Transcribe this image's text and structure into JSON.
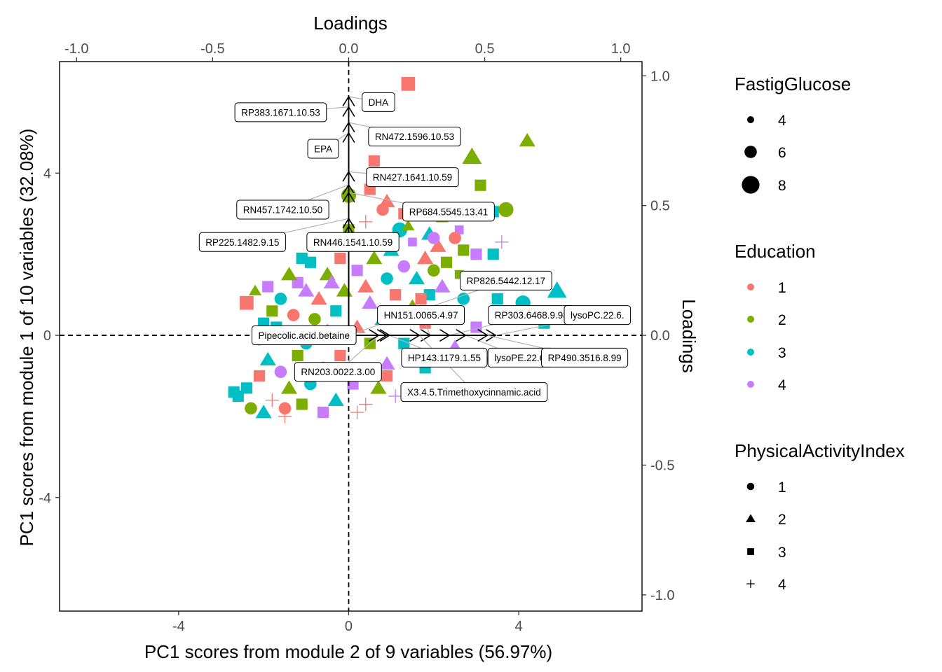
{
  "chart_data": {
    "type": "scatter",
    "subtype": "biplot",
    "xlabel": "PC1 scores from module 2 of 9 variables (56.97%)",
    "ylabel": "PC1 scores from module 1 of 10 variables (32.08%)",
    "top_axis_label": "Loadings",
    "right_axis_label": "Loadings",
    "xlim": [
      -6.8,
      6.9
    ],
    "ylim": [
      -6.8,
      6.75
    ],
    "xticks": [
      -4,
      0,
      4
    ],
    "yticks": [
      -4,
      0,
      4
    ],
    "loading_scale": 6.4,
    "top_ticks": [
      {
        "value": -1.0,
        "label": "-1.0"
      },
      {
        "value": -0.5,
        "label": "-0.5"
      },
      {
        "value": 0.0,
        "label": "0.0"
      },
      {
        "value": 0.5,
        "label": "0.5"
      },
      {
        "value": 1.0,
        "label": "1.0"
      }
    ],
    "right_ticks": [
      {
        "value": 1.0,
        "label": "1.0"
      },
      {
        "value": 0.5,
        "label": "0.5"
      },
      {
        "value": 0.0,
        "label": "0.0"
      },
      {
        "value": -0.5,
        "label": "-0.5"
      },
      {
        "value": -1.0,
        "label": "-1.0"
      }
    ],
    "grid": false,
    "reference_lines": {
      "x": 0,
      "y": 0,
      "style": "dashed"
    },
    "legend_position": "right",
    "legends": [
      {
        "title": "FastigGlucose",
        "type": "size",
        "entries": [
          {
            "label": "4",
            "value": 4
          },
          {
            "label": "6",
            "value": 6
          },
          {
            "label": "8",
            "value": 8
          }
        ]
      },
      {
        "title": "Education",
        "type": "color",
        "entries": [
          {
            "label": "1",
            "color": "#F8766D"
          },
          {
            "label": "2",
            "color": "#7CAE00"
          },
          {
            "label": "3",
            "color": "#00BFC4"
          },
          {
            "label": "4",
            "color": "#C77CFF"
          }
        ]
      },
      {
        "title": "PhysicalActivityIndex",
        "type": "shape",
        "entries": [
          {
            "label": "1",
            "shape": "circle"
          },
          {
            "label": "2",
            "shape": "triangle"
          },
          {
            "label": "3",
            "shape": "square"
          },
          {
            "label": "4",
            "shape": "plus"
          }
        ]
      }
    ],
    "loadings": [
      {
        "name": "DHA",
        "x": 0.0,
        "y": 0.92,
        "label_x": 0.7,
        "label_y": 5.75
      },
      {
        "name": "RP383.1671.10.53",
        "x": 0.0,
        "y": 0.88,
        "label_x": -1.6,
        "label_y": 5.5
      },
      {
        "name": "RN472.1596.10.53",
        "x": 0.0,
        "y": 0.82,
        "label_x": 1.55,
        "label_y": 4.9
      },
      {
        "name": "EPA",
        "x": 0.0,
        "y": 0.78,
        "label_x": -0.6,
        "label_y": 4.6
      },
      {
        "name": "RN427.1641.10.59",
        "x": 0.0,
        "y": 0.63,
        "label_x": 1.5,
        "label_y": 3.9
      },
      {
        "name": "RN457.1742.10.50",
        "x": 0.0,
        "y": 0.58,
        "label_x": -1.55,
        "label_y": 3.1
      },
      {
        "name": "RP684.5545.13.41",
        "x": 0.0,
        "y": 0.55,
        "label_x": 2.35,
        "label_y": 3.05
      },
      {
        "name": "RP225.1482.9.15",
        "x": 0.0,
        "y": 0.45,
        "label_x": -2.5,
        "label_y": 2.3
      },
      {
        "name": "RN446.1541.10.59",
        "x": 0.0,
        "y": 0.42,
        "label_x": 0.1,
        "label_y": 2.3
      },
      {
        "name": "RP826.5442.12.17",
        "x": 0.0,
        "y": 0.0,
        "label_x": 3.7,
        "label_y": 1.35
      },
      {
        "name": "HN151.0065.4.97",
        "x": 0.3,
        "y": 0.0,
        "label_x": 1.7,
        "label_y": 0.5
      },
      {
        "name": "RP303.6468.9.98",
        "x": 0.37,
        "y": 0.0,
        "label_x": 4.3,
        "label_y": 0.5
      },
      {
        "name": "lysoPC.22.6.",
        "x": 0.54,
        "y": 0.0,
        "label_x": 5.85,
        "label_y": 0.5
      },
      {
        "name": "Pipecolic.acid.betaine",
        "x": 0.14,
        "y": 0.0,
        "label_x": -1.05,
        "label_y": 0.0
      },
      {
        "name": "HP143.1179.1.55",
        "x": 0.15,
        "y": 0.0,
        "label_x": 2.25,
        "label_y": -0.55
      },
      {
        "name": "lysoPE.22.6.",
        "x": 0.43,
        "y": 0.0,
        "label_x": 4.05,
        "label_y": -0.55
      },
      {
        "name": "RP490.3516.8.99",
        "x": 0.51,
        "y": 0.0,
        "label_x": 5.55,
        "label_y": -0.55
      },
      {
        "name": "RN203.0022.3.00",
        "x": 0.11,
        "y": 0.0,
        "label_x": -0.25,
        "label_y": -0.9
      },
      {
        "name": "X3.4.5.Trimethoxycinnamic.acid",
        "x": 0.26,
        "y": 0.0,
        "label_x": 2.95,
        "label_y": -1.4
      }
    ],
    "points": [
      {
        "x": 1.4,
        "y": 6.2,
        "edu": 1,
        "pai": 3,
        "fg": 7
      },
      {
        "x": 4.2,
        "y": 4.8,
        "edu": 2,
        "pai": 2,
        "fg": 6
      },
      {
        "x": 2.9,
        "y": 4.4,
        "edu": 2,
        "pai": 2,
        "fg": 7
      },
      {
        "x": 0.6,
        "y": 4.3,
        "edu": 1,
        "pai": 3,
        "fg": 6
      },
      {
        "x": 0.5,
        "y": 3.6,
        "edu": 1,
        "pai": 3,
        "fg": 6
      },
      {
        "x": 3.1,
        "y": 3.7,
        "edu": 2,
        "pai": 3,
        "fg": 6
      },
      {
        "x": 0.0,
        "y": 3.45,
        "edu": 2,
        "pai": 1,
        "fg": 7
      },
      {
        "x": 3.7,
        "y": 3.1,
        "edu": 2,
        "pai": 1,
        "fg": 7
      },
      {
        "x": 3.4,
        "y": 3.05,
        "edu": 3,
        "pai": 3,
        "fg": 6
      },
      {
        "x": 0.9,
        "y": 3.3,
        "edu": 1,
        "pai": 2,
        "fg": 6
      },
      {
        "x": 1.3,
        "y": 3.0,
        "edu": 1,
        "pai": 3,
        "fg": 6
      },
      {
        "x": 2.2,
        "y": 2.9,
        "edu": 2,
        "pai": 2,
        "fg": 5
      },
      {
        "x": 0.8,
        "y": 3.1,
        "edu": 1,
        "pai": 1,
        "fg": 6
      },
      {
        "x": 1.6,
        "y": 3.0,
        "edu": 4,
        "pai": 2,
        "fg": 5
      },
      {
        "x": 0.4,
        "y": 2.8,
        "edu": 1,
        "pai": 4,
        "fg": 6
      },
      {
        "x": 2.6,
        "y": 2.6,
        "edu": 4,
        "pai": 3,
        "fg": 5
      },
      {
        "x": 1.9,
        "y": 2.5,
        "edu": 3,
        "pai": 2,
        "fg": 6
      },
      {
        "x": 2.5,
        "y": 2.4,
        "edu": 1,
        "pai": 1,
        "fg": 6
      },
      {
        "x": 3.6,
        "y": 2.3,
        "edu": 4,
        "pai": 4,
        "fg": 6
      },
      {
        "x": 1.2,
        "y": 2.6,
        "edu": 3,
        "pai": 1,
        "fg": 7
      },
      {
        "x": 0.7,
        "y": 2.4,
        "edu": 2,
        "pai": 3,
        "fg": 6
      },
      {
        "x": 2.1,
        "y": 2.2,
        "edu": 1,
        "pai": 2,
        "fg": 6
      },
      {
        "x": 1.5,
        "y": 2.3,
        "edu": 4,
        "pai": 3,
        "fg": 5
      },
      {
        "x": 0.3,
        "y": 2.3,
        "edu": 1,
        "pai": 3,
        "fg": 6
      },
      {
        "x": 2.7,
        "y": 2.1,
        "edu": 2,
        "pai": 3,
        "fg": 6
      },
      {
        "x": 3.0,
        "y": 2.0,
        "edu": 4,
        "pai": 3,
        "fg": 6
      },
      {
        "x": 3.4,
        "y": 2.0,
        "edu": 3,
        "pai": 3,
        "fg": 6
      },
      {
        "x": 1.0,
        "y": 2.1,
        "edu": 3,
        "pai": 2,
        "fg": 6
      },
      {
        "x": 1.8,
        "y": 1.9,
        "edu": 1,
        "pai": 2,
        "fg": 6
      },
      {
        "x": 2.3,
        "y": 1.8,
        "edu": 2,
        "pai": 3,
        "fg": 6
      },
      {
        "x": 0.6,
        "y": 1.9,
        "edu": 2,
        "pai": 2,
        "fg": 6
      },
      {
        "x": -0.2,
        "y": 1.9,
        "edu": 1,
        "pai": 3,
        "fg": 6
      },
      {
        "x": -0.9,
        "y": 1.8,
        "edu": 3,
        "pai": 3,
        "fg": 6
      },
      {
        "x": 1.3,
        "y": 1.7,
        "edu": 4,
        "pai": 1,
        "fg": 6
      },
      {
        "x": 2.0,
        "y": 1.6,
        "edu": 2,
        "pai": 1,
        "fg": 6
      },
      {
        "x": 2.6,
        "y": 1.5,
        "edu": 2,
        "pai": 3,
        "fg": 5
      },
      {
        "x": 0.2,
        "y": 1.6,
        "edu": 4,
        "pai": 3,
        "fg": 6
      },
      {
        "x": -0.5,
        "y": 1.5,
        "edu": 2,
        "pai": 2,
        "fg": 6
      },
      {
        "x": 1.6,
        "y": 1.4,
        "edu": 3,
        "pai": 2,
        "fg": 6
      },
      {
        "x": 0.9,
        "y": 1.4,
        "edu": 3,
        "pai": 1,
        "fg": 6
      },
      {
        "x": 3.1,
        "y": 1.3,
        "edu": 2,
        "pai": 1,
        "fg": 6
      },
      {
        "x": 2.2,
        "y": 1.2,
        "edu": 4,
        "pai": 2,
        "fg": 6
      },
      {
        "x": 0.4,
        "y": 1.2,
        "edu": 1,
        "pai": 2,
        "fg": 6
      },
      {
        "x": -1.2,
        "y": 1.3,
        "edu": 4,
        "pai": 3,
        "fg": 6
      },
      {
        "x": -0.1,
        "y": 1.1,
        "edu": 2,
        "pai": 2,
        "fg": 6
      },
      {
        "x": 1.9,
        "y": 1.0,
        "edu": 3,
        "pai": 3,
        "fg": 6
      },
      {
        "x": 1.1,
        "y": 1.0,
        "edu": 1,
        "pai": 3,
        "fg": 6
      },
      {
        "x": 2.7,
        "y": 0.9,
        "edu": 3,
        "pai": 1,
        "fg": 6
      },
      {
        "x": 4.9,
        "y": 1.1,
        "edu": 3,
        "pai": 2,
        "fg": 7
      },
      {
        "x": 4.1,
        "y": 0.8,
        "edu": 3,
        "pai": 1,
        "fg": 7
      },
      {
        "x": 3.5,
        "y": 0.9,
        "edu": 3,
        "pai": 3,
        "fg": 6
      },
      {
        "x": 0.5,
        "y": 0.8,
        "edu": 4,
        "pai": 2,
        "fg": 6
      },
      {
        "x": -0.7,
        "y": 0.9,
        "edu": 1,
        "pai": 2,
        "fg": 6
      },
      {
        "x": -1.6,
        "y": 0.9,
        "edu": 3,
        "pai": 1,
        "fg": 6
      },
      {
        "x": -1.9,
        "y": 1.2,
        "edu": 4,
        "pai": 3,
        "fg": 6
      },
      {
        "x": -2.2,
        "y": 1.1,
        "edu": 2,
        "pai": 2,
        "fg": 5
      },
      {
        "x": -1.0,
        "y": 1.1,
        "edu": 4,
        "pai": 2,
        "fg": 6
      },
      {
        "x": -1.4,
        "y": 1.5,
        "edu": 2,
        "pai": 2,
        "fg": 6
      },
      {
        "x": -1.1,
        "y": 1.9,
        "edu": 3,
        "pai": 3,
        "fg": 6
      },
      {
        "x": 1.5,
        "y": 0.7,
        "edu": 2,
        "pai": 2,
        "fg": 6
      },
      {
        "x": 2.3,
        "y": 0.6,
        "edu": 4,
        "pai": 1,
        "fg": 6
      },
      {
        "x": -0.3,
        "y": 0.6,
        "edu": 3,
        "pai": 3,
        "fg": 6
      },
      {
        "x": -1.3,
        "y": 0.5,
        "edu": 1,
        "pai": 1,
        "fg": 6
      },
      {
        "x": -1.8,
        "y": 0.6,
        "edu": 2,
        "pai": 3,
        "fg": 6
      },
      {
        "x": -2.0,
        "y": 0.3,
        "edu": 3,
        "pai": 3,
        "fg": 6
      },
      {
        "x": -2.4,
        "y": 0.8,
        "edu": 1,
        "pai": 3,
        "fg": 7
      },
      {
        "x": -0.8,
        "y": 0.4,
        "edu": 2,
        "pai": 1,
        "fg": 6
      },
      {
        "x": 0.8,
        "y": 0.4,
        "edu": 3,
        "pai": 2,
        "fg": 6
      },
      {
        "x": 1.8,
        "y": 0.3,
        "edu": 1,
        "pai": 3,
        "fg": 6
      },
      {
        "x": 3.0,
        "y": 0.2,
        "edu": 4,
        "pai": 3,
        "fg": 6
      },
      {
        "x": 4.6,
        "y": 0.3,
        "edu": 3,
        "pai": 3,
        "fg": 6
      },
      {
        "x": 0.2,
        "y": 0.2,
        "edu": 1,
        "pai": 2,
        "fg": 6
      },
      {
        "x": -0.5,
        "y": 0.1,
        "edu": 4,
        "pai": 2,
        "fg": 6
      },
      {
        "x": -1.5,
        "y": 0.0,
        "edu": 2,
        "pai": 2,
        "fg": 6
      },
      {
        "x": -2.1,
        "y": -0.1,
        "edu": 4,
        "pai": 1,
        "fg": 6
      },
      {
        "x": -1.0,
        "y": -0.2,
        "edu": 3,
        "pai": 1,
        "fg": 6
      },
      {
        "x": 0.5,
        "y": -0.2,
        "edu": 2,
        "pai": 3,
        "fg": 6
      },
      {
        "x": 1.3,
        "y": -0.2,
        "edu": 3,
        "pai": 3,
        "fg": 6
      },
      {
        "x": 2.5,
        "y": -0.3,
        "edu": 4,
        "pai": 2,
        "fg": 6
      },
      {
        "x": 3.4,
        "y": -0.6,
        "edu": 2,
        "pai": 1,
        "fg": 6
      },
      {
        "x": 4.3,
        "y": -0.5,
        "edu": 1,
        "pai": 3,
        "fg": 6
      },
      {
        "x": -0.2,
        "y": -0.5,
        "edu": 1,
        "pai": 3,
        "fg": 6
      },
      {
        "x": -1.2,
        "y": -0.5,
        "edu": 2,
        "pai": 3,
        "fg": 6
      },
      {
        "x": -1.9,
        "y": -0.6,
        "edu": 3,
        "pai": 2,
        "fg": 6
      },
      {
        "x": -2.1,
        "y": -1.0,
        "edu": 1,
        "pai": 3,
        "fg": 6
      },
      {
        "x": -1.6,
        "y": -0.9,
        "edu": 4,
        "pai": 1,
        "fg": 6
      },
      {
        "x": -0.6,
        "y": -0.8,
        "edu": 2,
        "pai": 1,
        "fg": 6
      },
      {
        "x": 0.9,
        "y": -0.7,
        "edu": 4,
        "pai": 2,
        "fg": 6
      },
      {
        "x": 1.8,
        "y": -0.8,
        "edu": 3,
        "pai": 3,
        "fg": 6
      },
      {
        "x": -2.4,
        "y": -1.3,
        "edu": 3,
        "pai": 3,
        "fg": 6
      },
      {
        "x": -1.4,
        "y": -1.3,
        "edu": 2,
        "pai": 2,
        "fg": 6
      },
      {
        "x": -0.9,
        "y": -1.2,
        "edu": 3,
        "pai": 1,
        "fg": 6
      },
      {
        "x": 0.1,
        "y": -1.2,
        "edu": 4,
        "pai": 3,
        "fg": 6
      },
      {
        "x": 0.7,
        "y": -1.3,
        "edu": 2,
        "pai": 2,
        "fg": 6
      },
      {
        "x": -2.6,
        "y": -1.5,
        "edu": 3,
        "pai": 3,
        "fg": 6
      },
      {
        "x": -1.8,
        "y": -1.6,
        "edu": 1,
        "pai": 4,
        "fg": 6
      },
      {
        "x": -1.1,
        "y": -1.7,
        "edu": 2,
        "pai": 3,
        "fg": 6
      },
      {
        "x": -0.3,
        "y": -1.6,
        "edu": 3,
        "pai": 2,
        "fg": 6
      },
      {
        "x": 0.4,
        "y": -1.7,
        "edu": 1,
        "pai": 4,
        "fg": 6
      },
      {
        "x": 1.1,
        "y": -1.5,
        "edu": 4,
        "pai": 4,
        "fg": 6
      },
      {
        "x": -2.3,
        "y": -1.8,
        "edu": 2,
        "pai": 1,
        "fg": 6
      },
      {
        "x": -1.5,
        "y": -1.8,
        "edu": 1,
        "pai": 1,
        "fg": 6
      },
      {
        "x": -0.6,
        "y": -1.9,
        "edu": 4,
        "pai": 3,
        "fg": 6
      },
      {
        "x": -2.7,
        "y": -1.4,
        "edu": 3,
        "pai": 3,
        "fg": 6
      },
      {
        "x": -2.0,
        "y": -1.9,
        "edu": 3,
        "pai": 2,
        "fg": 6
      },
      {
        "x": 0.2,
        "y": -1.9,
        "edu": 1,
        "pai": 4,
        "fg": 6
      },
      {
        "x": -1.5,
        "y": -2.0,
        "edu": 1,
        "pai": 4,
        "fg": 6
      },
      {
        "x": 0.9,
        "y": -1.0,
        "edu": 1,
        "pai": 3,
        "fg": 6
      },
      {
        "x": 1.7,
        "y": 0.9,
        "edu": 1,
        "pai": 3,
        "fg": 6
      },
      {
        "x": -0.4,
        "y": 1.3,
        "edu": 4,
        "pai": 2,
        "fg": 6
      },
      {
        "x": -1.7,
        "y": 0.2,
        "edu": 3,
        "pai": 3,
        "fg": 6
      },
      {
        "x": 0.0,
        "y": -0.8,
        "edu": 3,
        "pai": 3,
        "fg": 6
      },
      {
        "x": 0.0,
        "y": 2.6,
        "edu": 2,
        "pai": 3,
        "fg": 6
      },
      {
        "x": 1.4,
        "y": 2.7,
        "edu": 2,
        "pai": 2,
        "fg": 5
      },
      {
        "x": 2.0,
        "y": 2.4,
        "edu": 4,
        "pai": 1,
        "fg": 6
      },
      {
        "x": -0.6,
        "y": 2.2,
        "edu": 3,
        "pai": 3,
        "fg": 6
      }
    ]
  }
}
